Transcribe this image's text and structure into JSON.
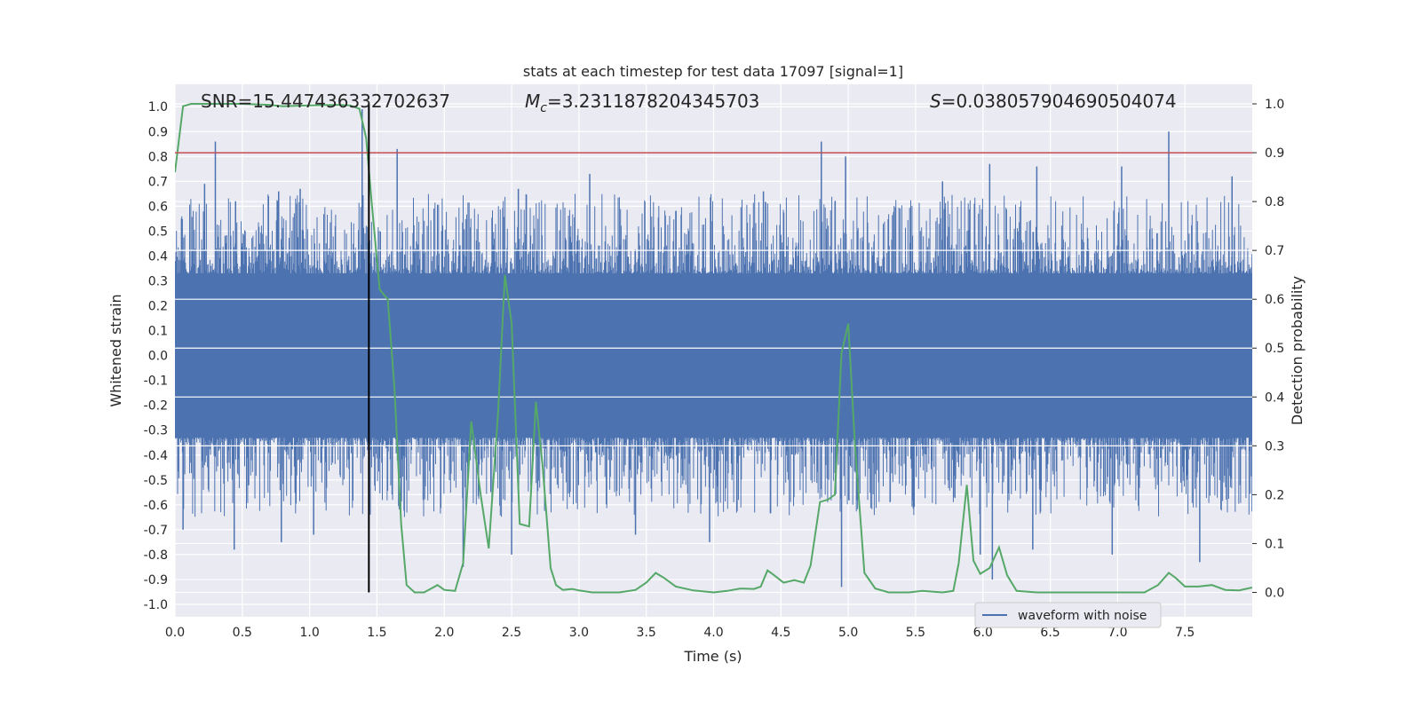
{
  "chart_data": {
    "type": "line",
    "title": "stats at each timestep for test data 17097 [signal=1]",
    "xlabel": "Time (s)",
    "ylabel": "Whitened strain",
    "y2label": "Detection probability",
    "xlim": [
      0.0,
      8.0
    ],
    "ylim": [
      -1.05,
      1.09
    ],
    "y2lim": [
      -0.05,
      1.04
    ],
    "x_ticks": [
      "0.0",
      "0.5",
      "1.0",
      "1.5",
      "2.0",
      "2.5",
      "3.0",
      "3.5",
      "4.0",
      "4.5",
      "5.0",
      "5.5",
      "6.0",
      "6.5",
      "7.0",
      "7.5"
    ],
    "y_ticks": [
      "1.0",
      "0.9",
      "0.8",
      "0.7",
      "0.6",
      "0.5",
      "0.4",
      "0.3",
      "0.2",
      "0.1",
      "0.0",
      "-0.1",
      "-0.2",
      "-0.3",
      "-0.4",
      "-0.5",
      "-0.6",
      "-0.7",
      "-0.8",
      "-0.9",
      "-1.0"
    ],
    "y2_ticks": [
      "1.0",
      "0.9",
      "0.8",
      "0.7",
      "0.6",
      "0.5",
      "0.4",
      "0.3",
      "0.2",
      "0.1",
      "0.0"
    ],
    "grid": true,
    "legend_position": "lower-right",
    "annotations": {
      "snr": "SNR=15.447436332702637",
      "mc_symbol": "M",
      "mc_sub": "c",
      "mc_value": "=3.2311878204345703",
      "s_symbol": "S",
      "s_value": "=0.038057904690504074"
    },
    "threshold": {
      "axis": "y2",
      "value": 0.9,
      "color": "#c44e52"
    },
    "event_marker": {
      "x": 1.44,
      "color": "#000000"
    },
    "series": [
      {
        "name": "waveform with noise",
        "axis": "y",
        "color": "#4c72b0",
        "style": "noise-envelope",
        "envelope_typical": [
          0.33,
          -0.33
        ],
        "envelope_max": [
          0.9,
          -0.93
        ],
        "peaks": [
          [
            0.22,
            0.69
          ],
          [
            0.3,
            0.86
          ],
          [
            0.45,
            0.62
          ],
          [
            0.77,
            0.66
          ],
          [
            0.93,
            0.67
          ],
          [
            1.39,
            0.99
          ],
          [
            1.65,
            0.83
          ],
          [
            2.55,
            0.67
          ],
          [
            3.08,
            0.73
          ],
          [
            4.37,
            0.66
          ],
          [
            4.8,
            0.86
          ],
          [
            4.98,
            0.8
          ],
          [
            5.7,
            0.7
          ],
          [
            6.05,
            0.77
          ],
          [
            6.4,
            0.76
          ],
          [
            7.03,
            0.76
          ],
          [
            7.38,
            0.9
          ],
          [
            7.85,
            0.72
          ],
          [
            0.06,
            -0.7
          ],
          [
            0.44,
            -0.78
          ],
          [
            0.79,
            -0.75
          ],
          [
            1.03,
            -0.72
          ],
          [
            2.14,
            -0.85
          ],
          [
            2.5,
            -0.8
          ],
          [
            3.42,
            -0.72
          ],
          [
            3.97,
            -0.75
          ],
          [
            4.95,
            -0.93
          ],
          [
            5.98,
            -0.8
          ],
          [
            6.07,
            -0.9
          ],
          [
            6.37,
            -0.78
          ],
          [
            6.96,
            -0.8
          ],
          [
            7.61,
            -0.83
          ]
        ]
      },
      {
        "name": "",
        "axis": "y2",
        "color": "#55a868",
        "points": [
          [
            0.0,
            0.86
          ],
          [
            0.06,
            0.995
          ],
          [
            0.12,
            1.0
          ],
          [
            0.3,
            1.0
          ],
          [
            0.5,
            1.0
          ],
          [
            0.7,
            0.998
          ],
          [
            0.8,
            0.995
          ],
          [
            1.0,
            0.997
          ],
          [
            1.2,
            0.998
          ],
          [
            1.3,
            0.997
          ],
          [
            1.37,
            0.99
          ],
          [
            1.42,
            0.93
          ],
          [
            1.46,
            0.8
          ],
          [
            1.52,
            0.62
          ],
          [
            1.58,
            0.6
          ],
          [
            1.63,
            0.42
          ],
          [
            1.68,
            0.14
          ],
          [
            1.72,
            0.015
          ],
          [
            1.78,
            0.0
          ],
          [
            1.85,
            0.0
          ],
          [
            1.95,
            0.015
          ],
          [
            2.0,
            0.005
          ],
          [
            2.08,
            0.003
          ],
          [
            2.14,
            0.06
          ],
          [
            2.2,
            0.35
          ],
          [
            2.27,
            0.2
          ],
          [
            2.33,
            0.09
          ],
          [
            2.4,
            0.37
          ],
          [
            2.45,
            0.65
          ],
          [
            2.5,
            0.55
          ],
          [
            2.56,
            0.14
          ],
          [
            2.63,
            0.135
          ],
          [
            2.68,
            0.39
          ],
          [
            2.73,
            0.26
          ],
          [
            2.79,
            0.05
          ],
          [
            2.83,
            0.015
          ],
          [
            2.88,
            0.005
          ],
          [
            2.95,
            0.007
          ],
          [
            3.0,
            0.004
          ],
          [
            3.1,
            0.0
          ],
          [
            3.3,
            0.0
          ],
          [
            3.42,
            0.005
          ],
          [
            3.5,
            0.02
          ],
          [
            3.57,
            0.04
          ],
          [
            3.63,
            0.03
          ],
          [
            3.72,
            0.012
          ],
          [
            3.85,
            0.004
          ],
          [
            4.0,
            0.0
          ],
          [
            4.1,
            0.003
          ],
          [
            4.2,
            0.008
          ],
          [
            4.3,
            0.007
          ],
          [
            4.35,
            0.012
          ],
          [
            4.4,
            0.045
          ],
          [
            4.45,
            0.035
          ],
          [
            4.52,
            0.02
          ],
          [
            4.6,
            0.025
          ],
          [
            4.67,
            0.02
          ],
          [
            4.72,
            0.055
          ],
          [
            4.79,
            0.185
          ],
          [
            4.85,
            0.19
          ],
          [
            4.9,
            0.2
          ],
          [
            4.95,
            0.49
          ],
          [
            5.0,
            0.55
          ],
          [
            5.05,
            0.3
          ],
          [
            5.12,
            0.04
          ],
          [
            5.2,
            0.008
          ],
          [
            5.3,
            0.0
          ],
          [
            5.45,
            0.0
          ],
          [
            5.55,
            0.003
          ],
          [
            5.7,
            0.0
          ],
          [
            5.78,
            0.003
          ],
          [
            5.82,
            0.06
          ],
          [
            5.88,
            0.22
          ],
          [
            5.93,
            0.065
          ],
          [
            5.98,
            0.038
          ],
          [
            6.05,
            0.05
          ],
          [
            6.12,
            0.092
          ],
          [
            6.18,
            0.035
          ],
          [
            6.25,
            0.003
          ],
          [
            6.4,
            0.0
          ],
          [
            6.6,
            0.0
          ],
          [
            6.9,
            0.0
          ],
          [
            7.2,
            0.0
          ],
          [
            7.3,
            0.015
          ],
          [
            7.38,
            0.04
          ],
          [
            7.43,
            0.03
          ],
          [
            7.5,
            0.012
          ],
          [
            7.6,
            0.012
          ],
          [
            7.7,
            0.015
          ],
          [
            7.8,
            0.005
          ],
          [
            7.9,
            0.004
          ],
          [
            8.0,
            0.01
          ]
        ]
      }
    ]
  }
}
